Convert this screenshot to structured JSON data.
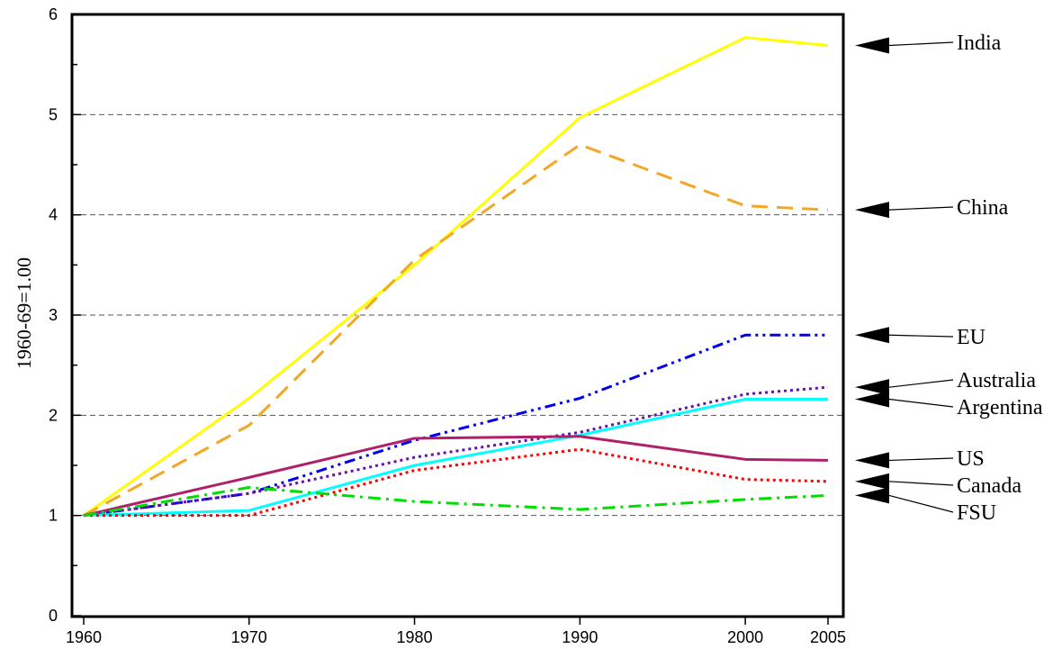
{
  "chart_data": {
    "type": "line",
    "title": "",
    "xlabel": "",
    "ylabel": "1960-69=1.00",
    "x": [
      1960,
      1970,
      1980,
      1990,
      2000,
      2005
    ],
    "x_ticks": [
      "1960",
      "1970",
      "1980",
      "1990",
      "2000",
      "2005"
    ],
    "y_ticks": [
      "0",
      "1",
      "2",
      "3",
      "4",
      "5",
      "6"
    ],
    "ylim": [
      0,
      6
    ],
    "grid": "horizontal dashed at 1-5",
    "series": [
      {
        "name": "India",
        "values": [
          1.0,
          2.17,
          3.5,
          4.97,
          5.77,
          5.69
        ],
        "color": "#ffff00",
        "dash": "solid"
      },
      {
        "name": "China",
        "values": [
          1.0,
          1.9,
          3.55,
          4.7,
          4.09,
          4.05
        ],
        "color": "#f5a623",
        "dash": "dashed"
      },
      {
        "name": "EU",
        "values": [
          1.0,
          1.22,
          1.75,
          2.17,
          2.8,
          2.8
        ],
        "color": "#0000ee",
        "dash": "dash-dot-dot"
      },
      {
        "name": "Australia",
        "values": [
          1.0,
          1.22,
          1.58,
          1.83,
          2.21,
          2.28
        ],
        "color": "#6a0dad",
        "dash": "dotted"
      },
      {
        "name": "Argentina",
        "values": [
          1.0,
          1.05,
          1.5,
          1.8,
          2.16,
          2.16
        ],
        "color": "#00ffff",
        "dash": "solid"
      },
      {
        "name": "US",
        "values": [
          1.0,
          1.38,
          1.77,
          1.79,
          1.56,
          1.55
        ],
        "color": "#b0206a",
        "dash": "solid"
      },
      {
        "name": "Canada",
        "values": [
          1.0,
          1.0,
          1.45,
          1.66,
          1.36,
          1.34
        ],
        "color": "#ff0000",
        "dash": "dotted"
      },
      {
        "name": "FSU",
        "values": [
          1.0,
          1.28,
          1.14,
          1.06,
          1.16,
          1.2
        ],
        "color": "#00dd00",
        "dash": "dash-dot"
      }
    ]
  }
}
